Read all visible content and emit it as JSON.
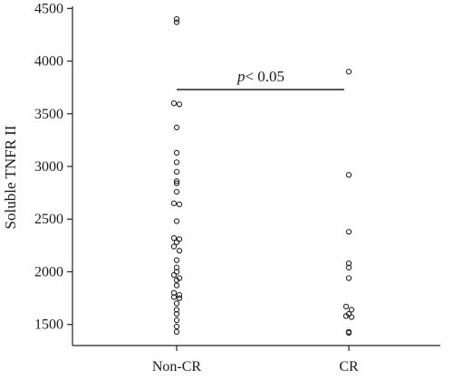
{
  "chart_data": {
    "type": "scatter",
    "ylabel": "Soluble TNFR II",
    "xlabel": "",
    "ylim": [
      1300,
      4520
    ],
    "yticks": [
      1500,
      2000,
      2500,
      3000,
      3500,
      4000,
      4500
    ],
    "ytick_labels": [
      "1500",
      "2000",
      "2500",
      "3000",
      "3500",
      "4000",
      "4500"
    ],
    "categories": [
      "Non-CR",
      "CR"
    ],
    "series": [
      {
        "category": "Non-CR",
        "values": [
          4400,
          4370,
          3600,
          3590,
          3370,
          3130,
          3040,
          2950,
          2860,
          2840,
          2760,
          2650,
          2640,
          2480,
          2320,
          2310,
          2280,
          2240,
          2200,
          2110,
          2040,
          2000,
          1970,
          1940,
          1920,
          1870,
          1800,
          1780,
          1760,
          1750,
          1700,
          1640,
          1600,
          1540,
          1480,
          1430
        ]
      },
      {
        "category": "CR",
        "values": [
          3900,
          2920,
          2380,
          2080,
          2040,
          1940,
          1670,
          1640,
          1600,
          1580,
          1570,
          1430,
          1420
        ]
      }
    ],
    "annotation": {
      "text_italic": "p",
      "text_rest": "< 0.05",
      "y": 3730
    },
    "grid": false
  }
}
